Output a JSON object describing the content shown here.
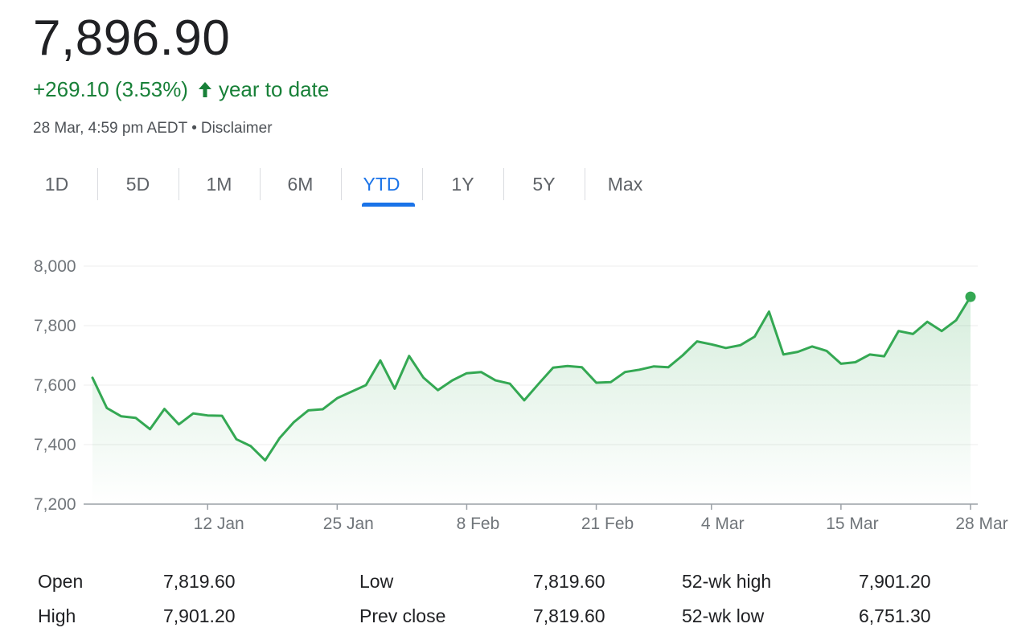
{
  "header": {
    "price": "7,896.90",
    "change": "+269.10 (3.53%)",
    "period": "year to date",
    "timestamp": "28 Mar, 4:59 pm AEDT",
    "separator": "•",
    "disclaimer": "Disclaimer",
    "color_up": "#188038"
  },
  "tabs": [
    {
      "label": "1D"
    },
    {
      "label": "5D"
    },
    {
      "label": "1M"
    },
    {
      "label": "6M"
    },
    {
      "label": "YTD",
      "active": true
    },
    {
      "label": "1Y"
    },
    {
      "label": "5Y"
    },
    {
      "label": "Max"
    }
  ],
  "chart_data": {
    "type": "area",
    "title": "",
    "xlabel": "",
    "ylabel": "",
    "ylim": [
      7200,
      8000
    ],
    "yticks": [
      7200,
      7400,
      7600,
      7800,
      8000
    ],
    "ytick_labels": [
      "7,200",
      "7,400",
      "7,600",
      "7,800",
      "8,000"
    ],
    "grid": true,
    "line_color": "#34a853",
    "fill_color": "#34a853",
    "xtick_labels": [
      "12 Jan",
      "25 Jan",
      "8 Feb",
      "21 Feb",
      "4 Mar",
      "15 Mar",
      "28 Mar"
    ],
    "xtick_index": [
      8,
      17,
      26,
      35,
      43,
      52,
      61
    ],
    "series": [
      {
        "values": [
          7625,
          7523,
          7495,
          7490,
          7452,
          7520,
          7468,
          7505,
          7498,
          7497,
          7418,
          7395,
          7347,
          7422,
          7476,
          7515,
          7519,
          7556,
          7578,
          7600,
          7683,
          7588,
          7698,
          7625,
          7583,
          7616,
          7640,
          7644,
          7616,
          7605,
          7549,
          7605,
          7659,
          7664,
          7660,
          7608,
          7610,
          7644,
          7652,
          7663,
          7660,
          7700,
          7747,
          7737,
          7725,
          7734,
          7763,
          7847,
          7703,
          7712,
          7730,
          7715,
          7672,
          7677,
          7703,
          7697,
          7782,
          7772,
          7813,
          7782,
          7818,
          7897
        ]
      }
    ],
    "last_value": 7896.9
  },
  "stats": [
    {
      "label": "Open",
      "value": "7,819.60"
    },
    {
      "label": "High",
      "value": "7,901.20"
    },
    {
      "label": "Low",
      "value": "7,819.60"
    },
    {
      "label": "Prev close",
      "value": "7,819.60"
    },
    {
      "label": "52-wk high",
      "value": "7,901.20"
    },
    {
      "label": "52-wk low",
      "value": "6,751.30"
    }
  ]
}
